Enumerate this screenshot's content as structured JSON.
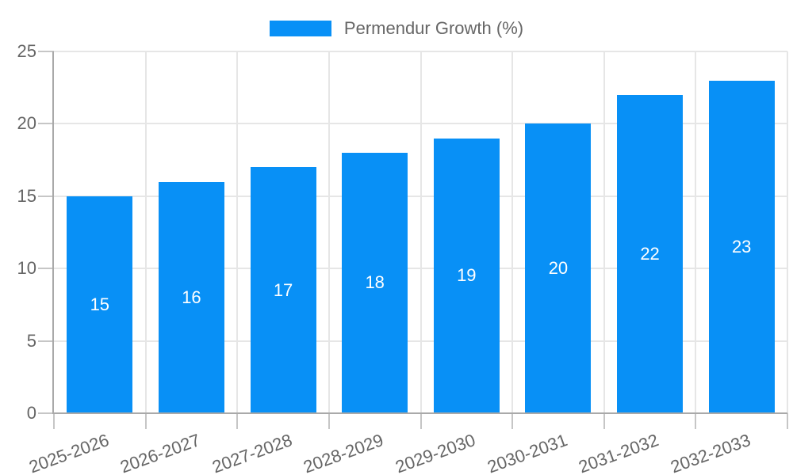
{
  "legend": {
    "label": "Permendur Growth (%)"
  },
  "colors": {
    "bar": "#0890f6",
    "bar_label_text": "#ffffff",
    "grid_line": "#e6e6e6",
    "axis_line": "#a9a9a9",
    "tick_mark": "#c6c6c6",
    "axis_text": "#666666",
    "background": "#ffffff"
  },
  "chart_data": {
    "type": "bar",
    "title": "Permendur Growth (%)",
    "series_name": "Permendur Growth (%)",
    "categories": [
      "2025-2026",
      "2026-2027",
      "2027-2028",
      "2028-2029",
      "2029-2030",
      "2030-2031",
      "2031-2032",
      "2032-2033"
    ],
    "values": [
      15,
      16,
      17,
      18,
      19,
      20,
      22,
      23
    ],
    "xlabel": "",
    "ylabel": "",
    "ylim": [
      0,
      25
    ],
    "yticks": [
      0,
      5,
      10,
      15,
      20,
      25
    ],
    "grid": true,
    "legend_position": "top",
    "bar_value_labels": true,
    "bar_value_label_position": "center",
    "x_tick_rotation_deg": -20
  }
}
